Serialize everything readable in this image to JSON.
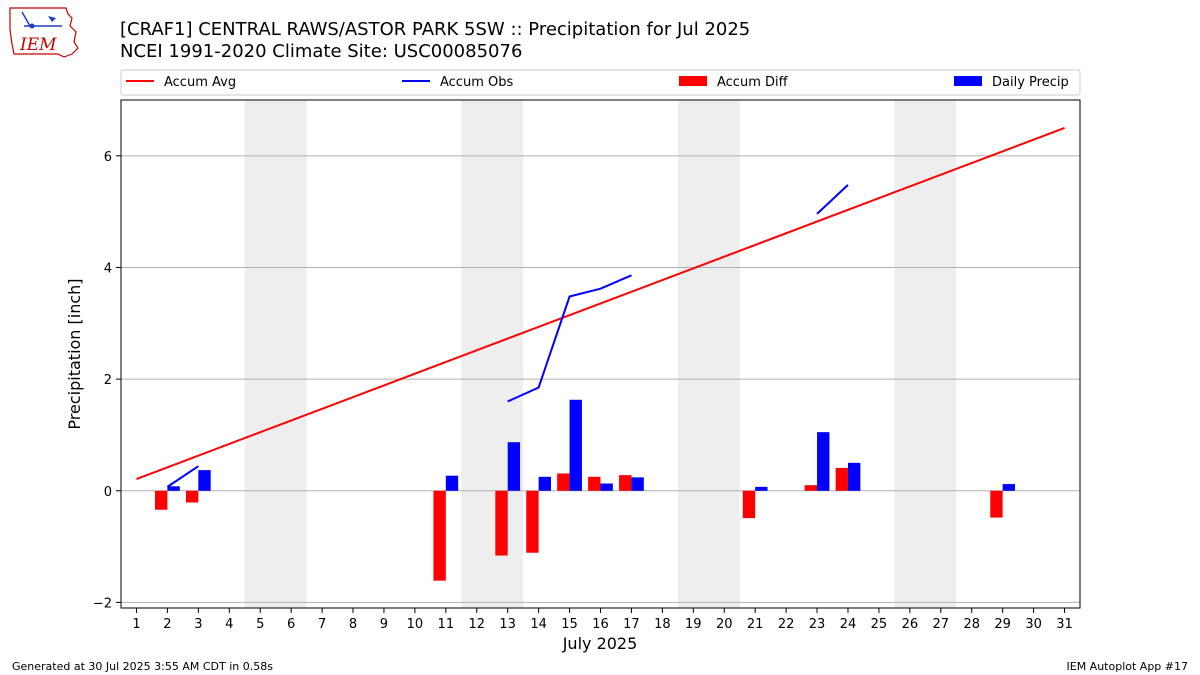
{
  "header": {
    "title_line1": "[CRAF1] CENTRAL RAWS/ASTOR PARK 5SW :: Precipitation for Jul 2025",
    "title_line2": "NCEI 1991-2020 Climate Site: USC00085076",
    "logo_text": "IEM"
  },
  "footer": {
    "generated": "Generated at 30 Jul 2025 3:55 AM CDT in 0.58s",
    "app": "IEM Autoplot App #17"
  },
  "chart_data": {
    "type": "bar",
    "xlabel": "July 2025",
    "ylabel": "Precipitation [inch]",
    "xlim": [
      0.5,
      31.5
    ],
    "ylim": [
      -2.1,
      7.0
    ],
    "y_ticks": [
      -2,
      0,
      2,
      4,
      6
    ],
    "x_ticks": [
      1,
      2,
      3,
      4,
      5,
      6,
      7,
      8,
      9,
      10,
      11,
      12,
      13,
      14,
      15,
      16,
      17,
      18,
      19,
      20,
      21,
      22,
      23,
      24,
      25,
      26,
      27,
      28,
      29,
      30,
      31
    ],
    "grid": "horizontal",
    "legend_position": "top",
    "weekend_shading": [
      [
        4.5,
        6.5
      ],
      [
        11.5,
        13.5
      ],
      [
        18.5,
        20.5
      ],
      [
        25.5,
        27.5
      ]
    ],
    "colors": {
      "accum_avg": "#ff0000",
      "accum_obs": "#0000ff",
      "accum_diff": "#ff0000",
      "daily_precip": "#0000ff",
      "weekend": "#eeeeee",
      "grid": "#b0b0b0"
    },
    "legend": [
      "Accum Avg",
      "Accum Obs",
      "Accum Diff",
      "Daily Precip"
    ],
    "accum_avg": {
      "x": [
        1,
        31
      ],
      "y": [
        0.21,
        6.5
      ]
    },
    "accum_obs_segments": [
      {
        "x": [
          2,
          3
        ],
        "y": [
          0.07,
          0.44
        ]
      },
      {
        "x": [
          13,
          14,
          15,
          16,
          17
        ],
        "y": [
          1.6,
          1.85,
          3.48,
          3.62,
          3.86
        ]
      },
      {
        "x": [
          23,
          24
        ],
        "y": [
          4.96,
          5.48
        ]
      }
    ],
    "accum_diff": [
      {
        "day": 2,
        "value": -0.34
      },
      {
        "day": 3,
        "value": -0.21
      },
      {
        "day": 11,
        "value": -1.61
      },
      {
        "day": 13,
        "value": -1.16
      },
      {
        "day": 14,
        "value": -1.11
      },
      {
        "day": 15,
        "value": 0.31
      },
      {
        "day": 16,
        "value": 0.25
      },
      {
        "day": 17,
        "value": 0.28
      },
      {
        "day": 21,
        "value": -0.49
      },
      {
        "day": 23,
        "value": 0.1
      },
      {
        "day": 24,
        "value": 0.41
      },
      {
        "day": 29,
        "value": -0.48
      }
    ],
    "daily_precip": [
      {
        "day": 2,
        "value": 0.08
      },
      {
        "day": 3,
        "value": 0.37
      },
      {
        "day": 11,
        "value": 0.27
      },
      {
        "day": 13,
        "value": 0.87
      },
      {
        "day": 14,
        "value": 0.25
      },
      {
        "day": 15,
        "value": 1.63
      },
      {
        "day": 16,
        "value": 0.13
      },
      {
        "day": 17,
        "value": 0.24
      },
      {
        "day": 21,
        "value": 0.07
      },
      {
        "day": 23,
        "value": 1.05
      },
      {
        "day": 24,
        "value": 0.5
      },
      {
        "day": 29,
        "value": 0.12
      }
    ]
  }
}
